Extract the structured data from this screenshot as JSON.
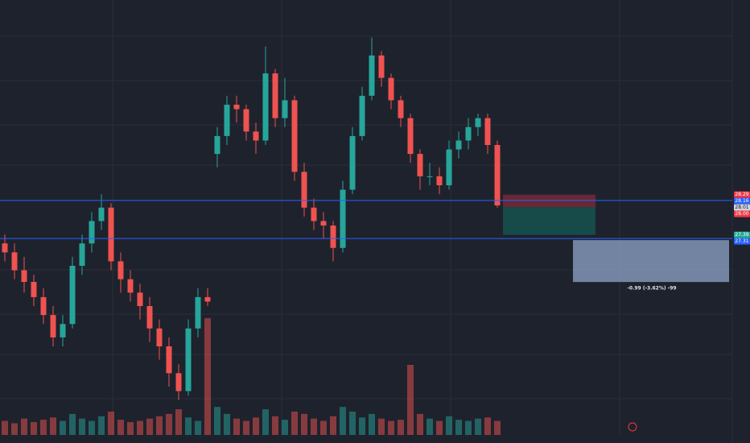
{
  "chart_data": {
    "type": "candlestick",
    "ylim": [
      23.1,
      32.64
    ],
    "up_color": "#26a69a",
    "down_color": "#ef5350",
    "candles": [
      [
        27.2,
        27.4,
        26.8,
        27.0
      ],
      [
        27.0,
        27.2,
        26.4,
        26.6
      ],
      [
        26.6,
        26.9,
        26.1,
        26.34
      ],
      [
        26.34,
        26.5,
        25.8,
        26.0
      ],
      [
        26.0,
        26.2,
        25.4,
        25.6
      ],
      [
        25.6,
        25.8,
        24.9,
        25.1
      ],
      [
        25.1,
        25.6,
        24.9,
        25.4
      ],
      [
        25.4,
        26.9,
        25.3,
        26.7
      ],
      [
        26.7,
        27.4,
        26.5,
        27.2
      ],
      [
        27.2,
        27.9,
        27.0,
        27.7
      ],
      [
        27.7,
        28.3,
        27.5,
        28.0
      ],
      [
        28.0,
        28.1,
        26.6,
        26.8
      ],
      [
        26.8,
        27.0,
        26.1,
        26.4
      ],
      [
        26.4,
        26.6,
        25.9,
        26.1
      ],
      [
        26.1,
        26.3,
        25.5,
        25.8
      ],
      [
        25.8,
        26.0,
        25.0,
        25.3
      ],
      [
        25.3,
        25.5,
        24.6,
        24.9
      ],
      [
        24.9,
        25.1,
        24.0,
        24.3
      ],
      [
        24.3,
        24.5,
        23.7,
        23.9
      ],
      [
        23.9,
        25.5,
        23.8,
        25.3
      ],
      [
        25.3,
        26.2,
        25.1,
        26.0
      ],
      [
        26.0,
        26.2,
        25.8,
        25.9
      ],
      [
        29.2,
        29.8,
        28.9,
        29.6
      ],
      [
        29.6,
        30.5,
        29.4,
        30.3
      ],
      [
        30.3,
        30.5,
        29.9,
        30.2
      ],
      [
        30.2,
        30.3,
        29.5,
        29.7
      ],
      [
        29.7,
        29.9,
        29.2,
        29.5
      ],
      [
        29.5,
        31.6,
        29.4,
        31.0
      ],
      [
        31.0,
        31.1,
        29.8,
        30.0
      ],
      [
        30.0,
        30.9,
        29.8,
        30.4
      ],
      [
        30.4,
        30.5,
        28.6,
        28.8
      ],
      [
        28.8,
        29.0,
        27.8,
        28.0
      ],
      [
        28.0,
        28.2,
        27.5,
        27.7
      ],
      [
        27.7,
        27.9,
        27.3,
        27.6
      ],
      [
        27.6,
        27.7,
        26.8,
        27.1
      ],
      [
        27.1,
        28.6,
        27.0,
        28.4
      ],
      [
        28.4,
        29.8,
        28.3,
        29.6
      ],
      [
        29.6,
        30.7,
        29.5,
        30.5
      ],
      [
        30.5,
        31.8,
        30.4,
        31.4
      ],
      [
        31.4,
        31.5,
        30.7,
        30.9
      ],
      [
        30.9,
        31.0,
        30.2,
        30.4
      ],
      [
        30.4,
        30.5,
        29.8,
        30.0
      ],
      [
        30.0,
        30.1,
        29.0,
        29.2
      ],
      [
        29.2,
        29.3,
        28.4,
        28.7
      ],
      [
        28.7,
        29.0,
        28.5,
        28.7
      ],
      [
        28.7,
        28.9,
        28.3,
        28.5
      ],
      [
        28.5,
        29.5,
        28.4,
        29.3
      ],
      [
        29.3,
        29.7,
        29.1,
        29.5
      ],
      [
        29.5,
        30.0,
        29.3,
        29.8
      ],
      [
        29.8,
        30.1,
        29.6,
        30.0
      ],
      [
        30.0,
        30.1,
        29.2,
        29.4
      ],
      [
        29.4,
        29.5,
        28.0,
        28.05
      ]
    ],
    "volume": [
      12,
      10,
      14,
      11,
      13,
      15,
      12,
      18,
      14,
      12,
      16,
      20,
      13,
      11,
      12,
      14,
      16,
      18,
      22,
      15,
      12,
      100,
      24,
      18,
      14,
      12,
      15,
      22,
      16,
      13,
      20,
      18,
      14,
      12,
      16,
      24,
      20,
      15,
      18,
      14,
      12,
      13,
      60,
      18,
      14,
      12,
      16,
      13,
      12,
      14,
      15,
      12
    ],
    "vlim": [
      0,
      100
    ],
    "hlines": [
      {
        "value": 28.16,
        "color": "#2962ff"
      },
      {
        "value": 27.31,
        "color": "#2962ff"
      }
    ],
    "price_tags": [
      {
        "value": 28.29,
        "label": "28.29",
        "color": "#f23645"
      },
      {
        "value": 28.16,
        "label": "28.16",
        "color": "#2962ff"
      },
      {
        "value": 28.01,
        "label": "28.01",
        "color": "#d1d4dc"
      },
      {
        "value": 28.0,
        "label": "28.00",
        "color": "#f23645"
      },
      {
        "value": 27.39,
        "label": "27.39",
        "color": "#22ab94"
      },
      {
        "value": 27.31,
        "label": "27.31",
        "color": "#2962ff"
      }
    ],
    "position": {
      "stop": 28.29,
      "entry": 28.01,
      "target": 27.39
    },
    "measure_label": "-0.99 (-3.62%) -99"
  }
}
